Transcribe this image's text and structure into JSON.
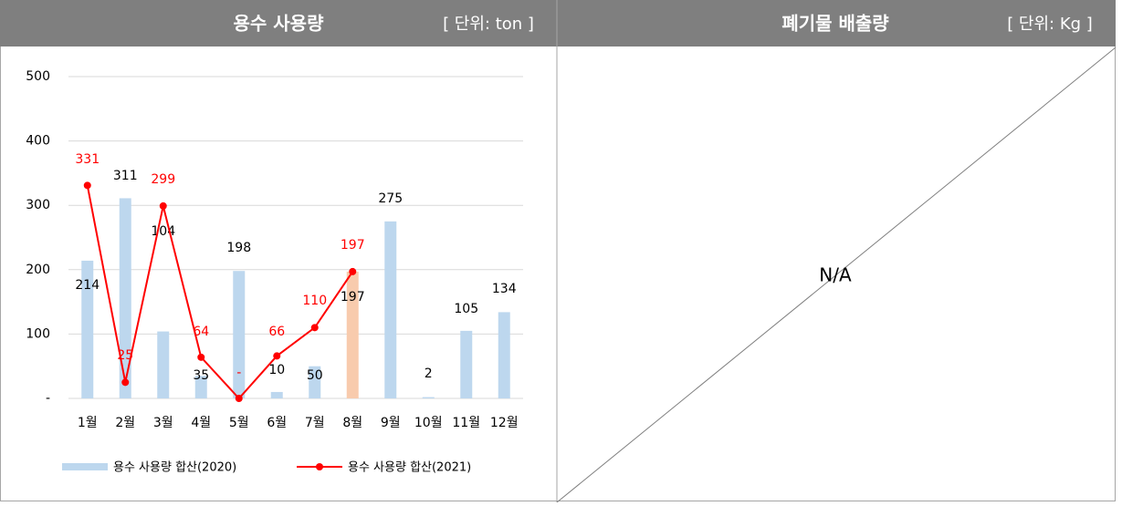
{
  "panels": [
    {
      "title": "용수 사용량",
      "unit": "[ 단위: ton ]"
    },
    {
      "title": "폐기물 배출량",
      "unit": "[ 단위: Kg ]",
      "body": "N/A"
    }
  ],
  "chart_data": {
    "type": "combo",
    "categories": [
      "1월",
      "2월",
      "3월",
      "4월",
      "5월",
      "6월",
      "7월",
      "8월",
      "9월",
      "10월",
      "11월",
      "12월"
    ],
    "series": [
      {
        "name": "용수 사용량 합산(2020)",
        "type": "bar",
        "color": "#bdd7ee",
        "colors": [
          "#bdd7ee",
          "#bdd7ee",
          "#bdd7ee",
          "#bdd7ee",
          "#bdd7ee",
          "#bdd7ee",
          "#bdd7ee",
          "#f8cbad",
          "#bdd7ee",
          "#bdd7ee",
          "#bdd7ee",
          "#bdd7ee"
        ],
        "values": [
          214,
          311,
          104,
          35,
          198,
          10,
          50,
          197,
          275,
          2,
          105,
          134
        ]
      },
      {
        "name": "용수 사용량 합산(2021)",
        "type": "line",
        "color": "#ff0000",
        "values": [
          331,
          25,
          299,
          64,
          0,
          66,
          110,
          197,
          null,
          null,
          null,
          null
        ],
        "value_labels": [
          "331",
          "25",
          "299",
          "64",
          "-",
          "66",
          "110",
          "197",
          null,
          null,
          null,
          null
        ]
      }
    ],
    "ylim": [
      0,
      500
    ],
    "yticks": [
      {
        "value": 0,
        "label": "-"
      },
      100,
      200,
      300,
      400,
      500
    ],
    "grid": true,
    "legend": "bottom"
  }
}
